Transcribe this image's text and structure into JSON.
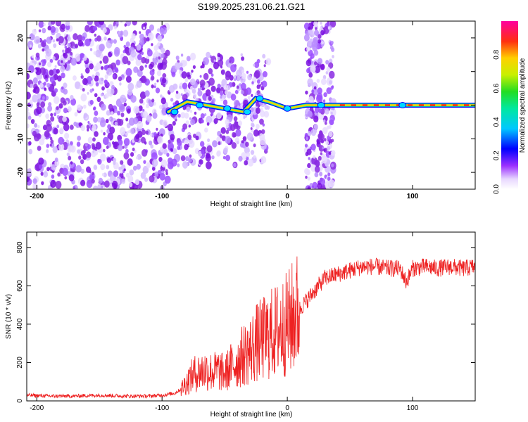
{
  "title": "S199.2025.231.06.21.G21",
  "colors": {
    "snr_line": "#ee2222",
    "axis": "#000000",
    "scatter": "#8a2be2"
  },
  "chart_data": [
    {
      "type": "heatmap",
      "name": "spectrogram",
      "xlabel": "Height of straight line (km)",
      "ylabel": "Frequency (Hz)",
      "xlim": [
        -208,
        150
      ],
      "ylim": [
        -25,
        25
      ],
      "xticks": [
        -200,
        -100,
        0,
        100
      ],
      "yticks": [
        -20,
        -10,
        0,
        10,
        20
      ],
      "colorbar": {
        "label": "Normalized spectral amplitude",
        "range": [
          0,
          1
        ],
        "ticks": [
          "0.0",
          "0.2",
          "0.4",
          "0.6",
          "0.8"
        ]
      },
      "features": [
        {
          "kind": "scatter",
          "x_range": [
            -208,
            -95
          ],
          "y_range": [
            -25,
            25
          ],
          "density": "high"
        },
        {
          "kind": "scatter",
          "x_range": [
            -95,
            -15
          ],
          "y_range": [
            -18,
            15
          ],
          "density": "medium"
        },
        {
          "kind": "vertical_band",
          "x_range": [
            15,
            37
          ],
          "y_range": [
            -25,
            25
          ]
        },
        {
          "kind": "line",
          "x": [
            -95,
            -80,
            -65,
            -50,
            -35,
            -25,
            -15,
            0,
            15,
            40,
            150
          ],
          "y": [
            -2,
            1,
            0,
            -1,
            -2,
            2,
            1,
            -1,
            0,
            0,
            0
          ]
        }
      ]
    },
    {
      "type": "line",
      "name": "snr",
      "xlabel": "Height of straight line (km)",
      "ylabel": "SNR (10 * v/v)",
      "xlim": [
        -208,
        150
      ],
      "ylim": [
        0,
        880
      ],
      "xticks": [
        -200,
        -100,
        0,
        100
      ],
      "yticks": [
        0,
        200,
        400,
        600,
        800
      ],
      "series": [
        {
          "name": "SNR",
          "x": [
            -208,
            -190,
            -170,
            -150,
            -130,
            -110,
            -100,
            -90,
            -85,
            -80,
            -75,
            -70,
            -65,
            -60,
            -55,
            -50,
            -45,
            -40,
            -35,
            -30,
            -25,
            -20,
            -15,
            -10,
            -5,
            0,
            5,
            10,
            15,
            20,
            25,
            30,
            35,
            40,
            45,
            50,
            55,
            60,
            70,
            80,
            90,
            95,
            100,
            110,
            120,
            130,
            140,
            150
          ],
          "y": [
            30,
            25,
            25,
            30,
            25,
            25,
            30,
            40,
            60,
            100,
            140,
            150,
            160,
            150,
            160,
            140,
            180,
            200,
            240,
            260,
            300,
            320,
            340,
            360,
            380,
            400,
            440,
            480,
            520,
            560,
            600,
            640,
            650,
            660,
            670,
            680,
            690,
            700,
            700,
            690,
            690,
            620,
            690,
            700,
            690,
            700,
            690,
            700
          ]
        }
      ]
    }
  ]
}
